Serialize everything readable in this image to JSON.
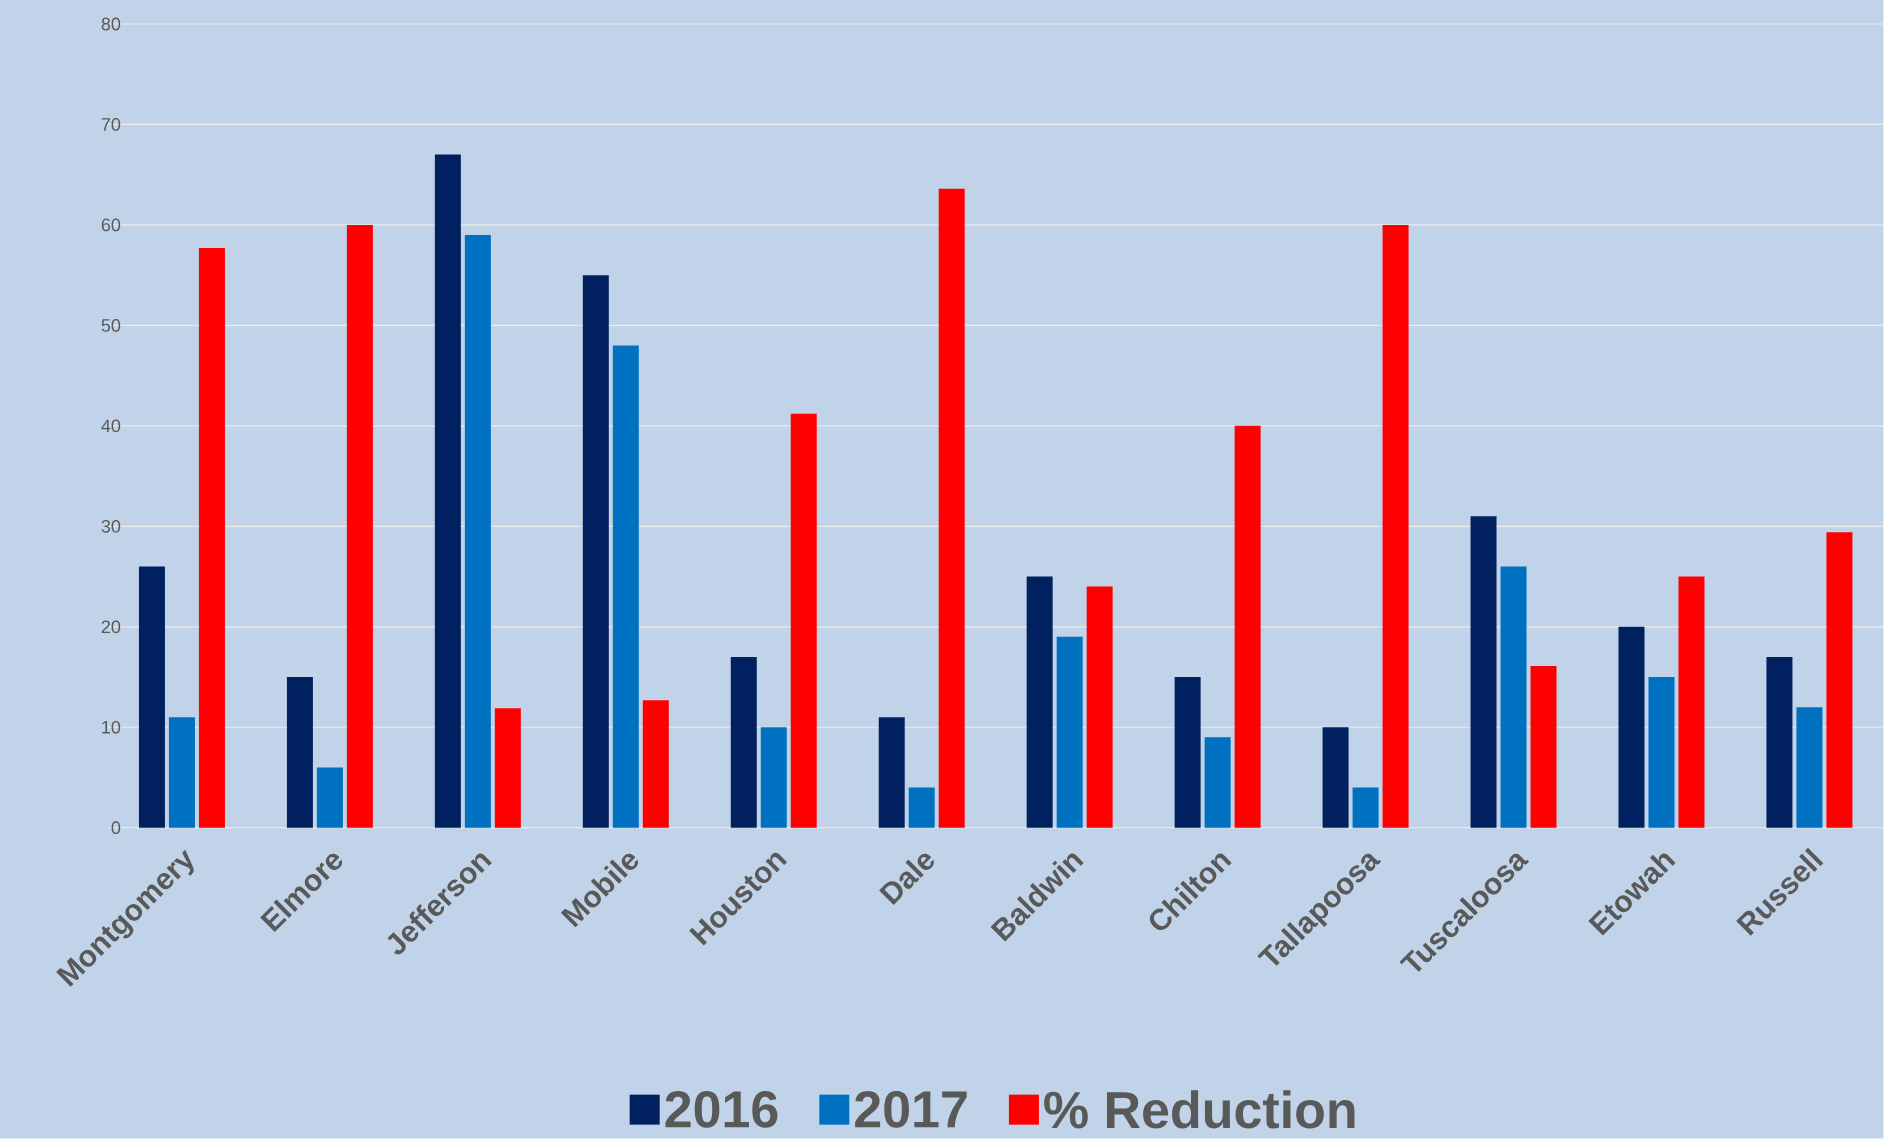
{
  "chart_data": {
    "type": "bar",
    "categories": [
      "Montgomery",
      "Elmore",
      "Jefferson",
      "Mobile",
      "Houston",
      "Dale",
      "Baldwin",
      "Chilton",
      "Tallapoosa",
      "Tuscaloosa",
      "Etowah",
      "Russell"
    ],
    "series": [
      {
        "name": "2016",
        "color": "#002060",
        "values": [
          26,
          15,
          67,
          55,
          17,
          11,
          25,
          15,
          10,
          31,
          20,
          17
        ]
      },
      {
        "name": "2017",
        "color": "#0070c0",
        "values": [
          11,
          6,
          59,
          48,
          10,
          4,
          19,
          9,
          4,
          26,
          15,
          12
        ]
      },
      {
        "name": "% Reduction",
        "color": "#ff0000",
        "values": [
          57.7,
          60,
          11.9,
          12.7,
          41.2,
          63.6,
          24,
          40,
          60,
          16.1,
          25,
          29.4
        ]
      }
    ],
    "ylim": [
      0,
      80
    ],
    "yticks": [
      0,
      10,
      20,
      30,
      40,
      50,
      60,
      70,
      80
    ],
    "grid": "y",
    "legend": "bottom"
  }
}
